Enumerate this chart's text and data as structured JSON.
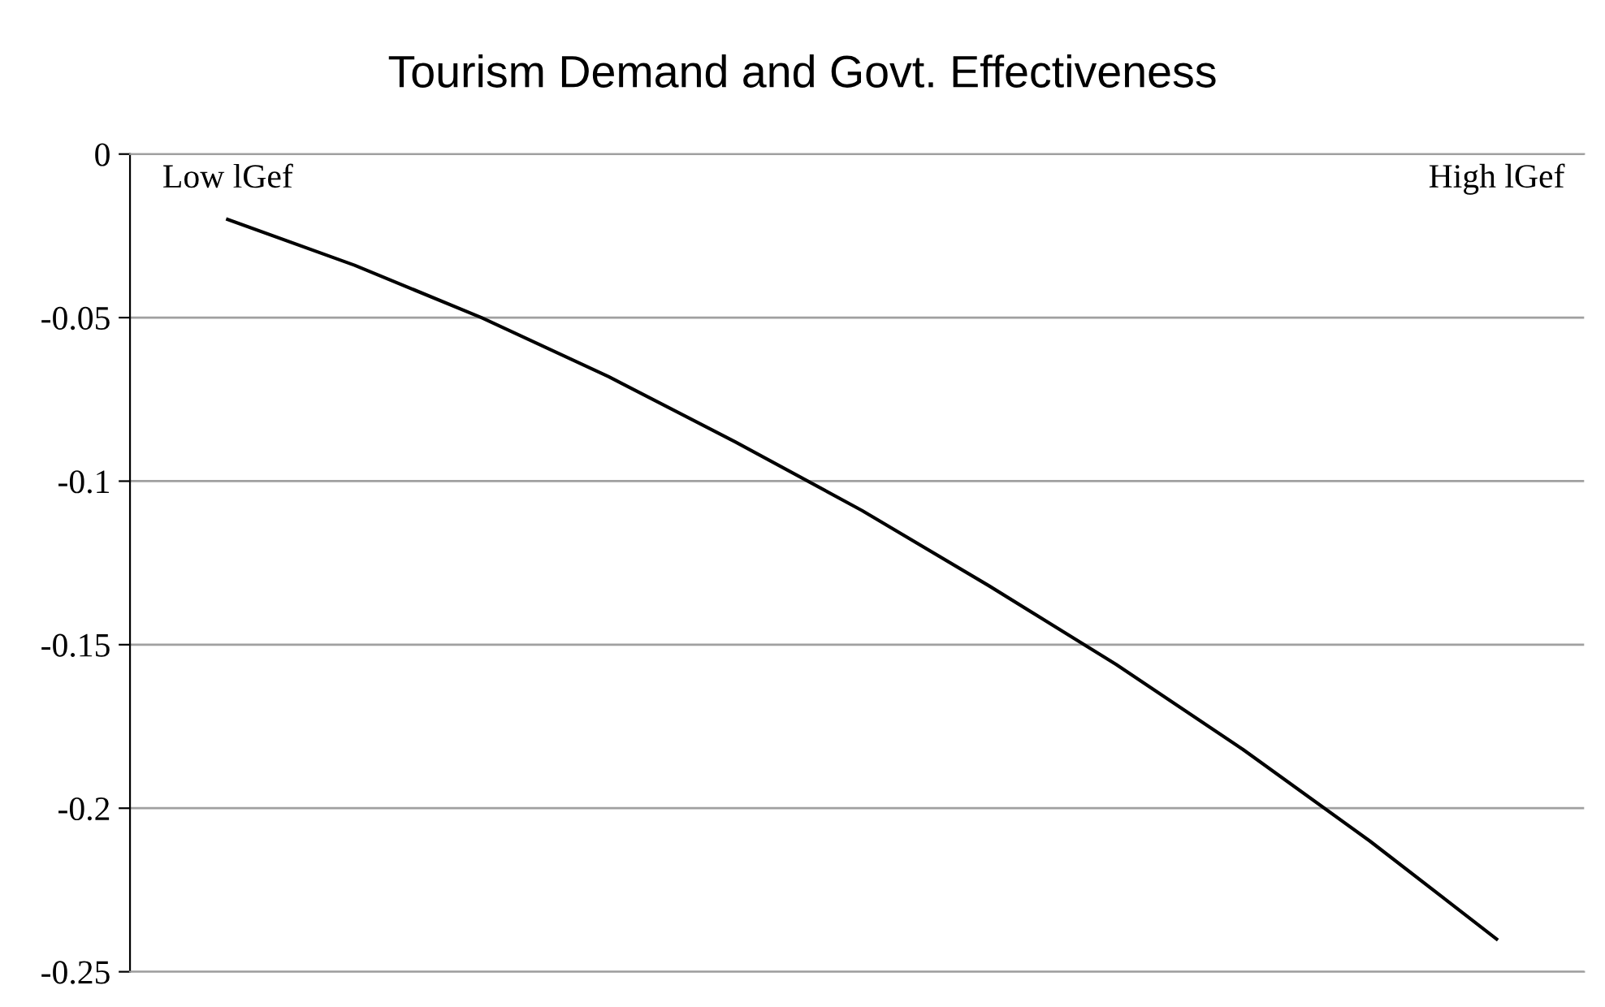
{
  "chart_data": {
    "type": "line",
    "title": "Tourism Demand and Govt. Effectiveness",
    "categories": [
      "Low lGef",
      null,
      null,
      null,
      null,
      null,
      null,
      null,
      null,
      null,
      "High lGef"
    ],
    "series": [
      {
        "color": "#000000",
        "values": [
          -0.02,
          -0.034,
          -0.05,
          -0.068,
          -0.088,
          -0.109,
          -0.132,
          -0.156,
          -0.182,
          -0.21,
          -0.24
        ]
      }
    ],
    "ylim": [
      -0.25,
      0
    ],
    "yticks": [
      0,
      -0.05,
      -0.1,
      -0.15,
      -0.2,
      -0.25
    ],
    "grid": "y",
    "marker": "none",
    "line_style": "solid"
  }
}
